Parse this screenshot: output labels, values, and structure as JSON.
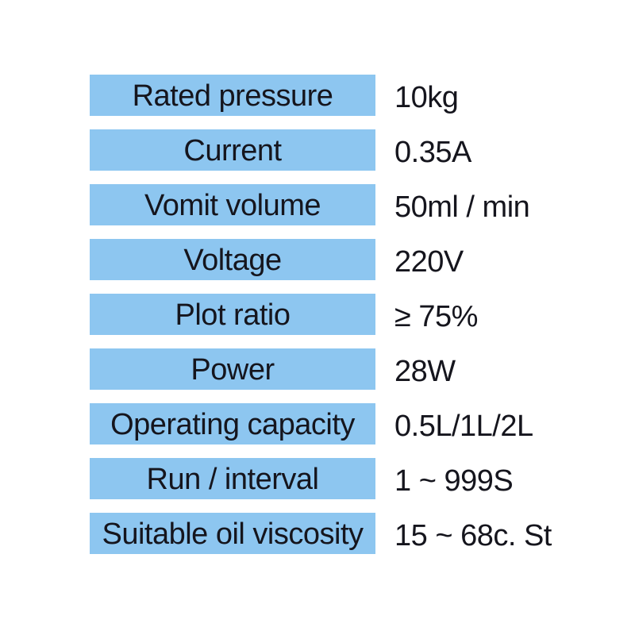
{
  "spec_table": {
    "colors": {
      "label_background": "#8dc6f0",
      "text": "#15151d",
      "page_background": "#ffffff"
    },
    "rows": [
      {
        "label": "Rated pressure",
        "value": "10kg"
      },
      {
        "label": "Current",
        "value": "0.35A"
      },
      {
        "label": "Vomit volume",
        "value": "50ml / min"
      },
      {
        "label": "Voltage",
        "value": "220V"
      },
      {
        "label": "Plot ratio",
        "value": "≥ 75%"
      },
      {
        "label": "Power",
        "value": "28W"
      },
      {
        "label": "Operating capacity",
        "value": "0.5L/1L/2L"
      },
      {
        "label": "Run / interval",
        "value": "1 ~ 999S"
      },
      {
        "label": "Suitable oil viscosity",
        "value": "15 ~ 68c. St"
      }
    ]
  }
}
